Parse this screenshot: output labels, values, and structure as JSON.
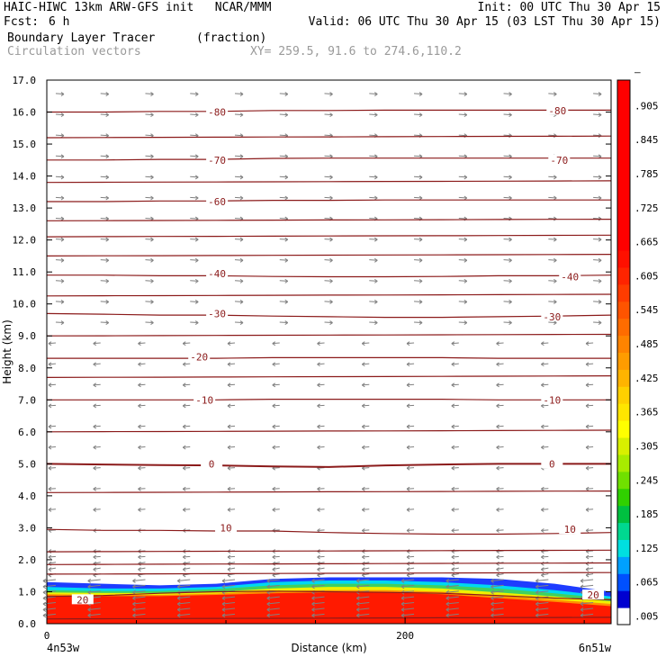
{
  "header": {
    "title_left": "HAIC-HIWC 13km ARW-GFS init   NCAR/MMM",
    "init": "Init: 00 UTC Thu 30 Apr 15",
    "fcst_label": "Fcst:",
    "fcst_value": "6 h",
    "valid": "Valid: 06 UTC Thu 30 Apr 15 (03 LST Thu 30 Apr 15)",
    "field": "Boundary Layer Tracer",
    "field_units": "(fraction)",
    "vectors": "Circulation vectors",
    "xy": "XY= 259.5, 91.6 to 274.6,110.2"
  },
  "colors": {
    "contour": "#8b1a1a",
    "vector": "#808080",
    "frame": "#000000"
  },
  "chart_data": {
    "type": "heatmap",
    "title": "Boundary Layer Tracer",
    "xlabel": "Distance (km)",
    "ylabel": "Height (km)",
    "xlim": [
      0,
      315
    ],
    "ylim": [
      0,
      17
    ],
    "x_ticks": [
      0,
      200
    ],
    "x_tick_labels": [
      "0",
      "200"
    ],
    "x_end_labels": [
      "4n53w",
      "6n51w"
    ],
    "y_ticks": [
      0,
      1,
      2,
      3,
      4,
      5,
      6,
      7,
      8,
      9,
      10,
      11,
      12,
      13,
      14,
      15,
      16,
      17
    ],
    "y_tick_labels": [
      "0.0",
      "1.0",
      "2.0",
      "3.0",
      "4.0",
      "5.0",
      "6.0",
      "7.0",
      "8.0",
      "9.0",
      "10.0",
      "11.0",
      "12.0",
      "13.0",
      "14.0",
      "15.0",
      "16.0",
      "17.0"
    ],
    "colorbar": {
      "levels": [
        0.005,
        0.035,
        0.065,
        0.095,
        0.125,
        0.155,
        0.185,
        0.215,
        0.245,
        0.275,
        0.305,
        0.335,
        0.365,
        0.395,
        0.425,
        0.455,
        0.485,
        0.515,
        0.545,
        0.575,
        0.605,
        0.635,
        0.665,
        0.695,
        0.725,
        0.755,
        0.785,
        0.815,
        0.845,
        0.875,
        0.905,
        0.935
      ],
      "colors": [
        "#ffffff",
        "#0000d0",
        "#0050ff",
        "#00a0ff",
        "#00e0e0",
        "#00d890",
        "#00c040",
        "#30d000",
        "#70e000",
        "#a8ec00",
        "#d8f000",
        "#ffff00",
        "#ffe600",
        "#ffd000",
        "#ffb400",
        "#ff9c00",
        "#ff8400",
        "#ff6c00",
        "#ff5400",
        "#ff3c00",
        "#ff2400",
        "#ff1000",
        "#ff0000",
        "#ff0000",
        "#ff0000",
        "#ff0000",
        "#ff0000",
        "#ff0000",
        "#ff0000",
        "#ff0000",
        "#ff0000",
        "#ff0000"
      ],
      "labels": [
        ".005",
        ".065",
        ".125",
        ".185",
        ".245",
        ".305",
        ".365",
        ".425",
        ".485",
        ".545",
        ".605",
        ".665",
        ".725",
        ".785",
        ".845",
        ".905",
        "–"
      ]
    },
    "tracer_layers": [
      {
        "name": "blue edge",
        "color": "#1e3cff",
        "bottom_km": [
          0.95,
          0.95,
          0.95,
          0.95,
          0.95,
          0.95,
          0.95,
          0.9,
          0.7,
          0.6,
          0.55
        ],
        "top_km": [
          1.3,
          1.25,
          1.2,
          1.25,
          1.4,
          1.45,
          1.45,
          1.45,
          1.4,
          1.25,
          1.0
        ]
      },
      {
        "name": "cyan",
        "color": "#00d8f0",
        "bottom_km": [
          0.9,
          0.9,
          0.9,
          0.9,
          0.92,
          0.92,
          0.9,
          0.85,
          0.6,
          0.55,
          0.5
        ],
        "top_km": [
          1.15,
          1.1,
          1.1,
          1.15,
          1.3,
          1.35,
          1.35,
          1.3,
          1.2,
          1.05,
          0.85
        ]
      },
      {
        "name": "green",
        "color": "#40d060",
        "bottom_km": [
          0.88,
          0.88,
          0.88,
          0.9,
          0.9,
          0.9,
          0.88,
          0.82,
          0.55,
          0.5,
          0.45
        ],
        "top_km": [
          1.05,
          1.02,
          1.02,
          1.08,
          1.2,
          1.25,
          1.25,
          1.2,
          1.1,
          0.95,
          0.78
        ]
      },
      {
        "name": "yellow",
        "color": "#f0f000",
        "bottom_km": [
          0.85,
          0.85,
          0.85,
          0.85,
          0.85,
          0.85,
          0.85,
          0.8,
          0.5,
          0.45,
          0.4
        ],
        "top_km": [
          0.98,
          0.96,
          0.96,
          1.0,
          1.1,
          1.15,
          1.15,
          1.1,
          0.98,
          0.85,
          0.7
        ]
      },
      {
        "name": "orange",
        "color": "#ff9000",
        "bottom_km": [
          0.8,
          0.8,
          0.8,
          0.8,
          0.8,
          0.8,
          0.8,
          0.75,
          0.45,
          0.4,
          0.38
        ],
        "top_km": [
          0.92,
          0.9,
          0.9,
          0.94,
          1.02,
          1.05,
          1.05,
          1.0,
          0.88,
          0.75,
          0.62
        ]
      },
      {
        "name": "red",
        "color": "#ff1a00",
        "bottom_km": [
          0.0,
          0.0,
          0.0,
          0.0,
          0.0,
          0.0,
          0.0,
          0.0,
          0.0,
          0.0,
          0.0
        ],
        "top_km": [
          0.88,
          0.86,
          0.86,
          0.9,
          0.95,
          0.98,
          0.98,
          0.92,
          0.8,
          0.68,
          0.55
        ]
      }
    ],
    "temperature_contours": [
      {
        "label": "20",
        "heights_km": [
          0.85,
          0.88,
          0.95,
          1.0,
          1.02,
          1.0,
          0.98,
          0.95,
          0.88,
          0.8,
          0.75
        ],
        "label_positions": [
          [
            20,
            0.75
          ],
          [
            305,
            0.9
          ]
        ]
      },
      {
        "label": "10",
        "heights_km": [
          2.95,
          2.92,
          2.92,
          2.9,
          2.9,
          2.85,
          2.82,
          2.8,
          2.8,
          2.82,
          2.85
        ],
        "label_positions": [
          [
            100,
            3.0
          ],
          [
            292,
            2.95
          ]
        ]
      },
      {
        "label": "0",
        "heights_km": [
          5.0,
          4.98,
          4.96,
          4.95,
          4.92,
          4.9,
          4.95,
          4.98,
          5.0,
          5.0,
          5.0
        ],
        "label_positions": [
          [
            92,
            5.0
          ],
          [
            282,
            5.0
          ]
        ]
      },
      {
        "label": "-10",
        "heights_km": [
          7.0,
          7.0,
          7.0,
          7.0,
          7.02,
          7.02,
          7.02,
          7.02,
          7.0,
          7.0,
          7.0
        ],
        "label_positions": [
          [
            88,
            7.0
          ],
          [
            282,
            7.0
          ]
        ]
      },
      {
        "label": "-20",
        "heights_km": [
          8.3,
          8.3,
          8.3,
          8.3,
          8.32,
          8.32,
          8.32,
          8.32,
          8.3,
          8.3,
          8.3
        ],
        "label_positions": [
          [
            85,
            8.35
          ],
          null
        ]
      },
      {
        "label": "-30",
        "heights_km": [
          9.7,
          9.68,
          9.65,
          9.65,
          9.62,
          9.6,
          9.58,
          9.58,
          9.6,
          9.62,
          9.65
        ],
        "label_positions": [
          [
            95,
            9.7
          ],
          [
            282,
            9.6
          ]
        ]
      },
      {
        "label": "-40",
        "heights_km": [
          10.9,
          10.9,
          10.88,
          10.88,
          10.86,
          10.85,
          10.85,
          10.86,
          10.88,
          10.88,
          10.9
        ],
        "label_positions": [
          [
            95,
            10.95
          ],
          [
            292,
            10.85
          ]
        ]
      },
      {
        "label": "-60",
        "heights_km": [
          13.2,
          13.2,
          13.22,
          13.22,
          13.24,
          13.24,
          13.25,
          13.25,
          13.25,
          13.25,
          13.25
        ],
        "label_positions": [
          [
            95,
            13.2
          ],
          null
        ]
      },
      {
        "label": "-70",
        "heights_km": [
          14.5,
          14.5,
          14.52,
          14.52,
          14.55,
          14.56,
          14.56,
          14.56,
          14.56,
          14.56,
          14.56
        ],
        "label_positions": [
          [
            95,
            14.5
          ],
          [
            286,
            14.5
          ]
        ]
      },
      {
        "label": "-80",
        "heights_km": [
          16.0,
          16.0,
          16.02,
          16.02,
          16.05,
          16.05,
          16.06,
          16.06,
          16.06,
          16.06,
          16.06
        ],
        "label_positions": [
          [
            95,
            16.0
          ],
          [
            285,
            16.05
          ]
        ]
      }
    ],
    "extra_contours_km": [
      0.15,
      1.55,
      1.85,
      2.25,
      4.1,
      6.0,
      7.7,
      9.0,
      10.25,
      11.5,
      12.1,
      12.6,
      13.8,
      15.2
    ]
  }
}
